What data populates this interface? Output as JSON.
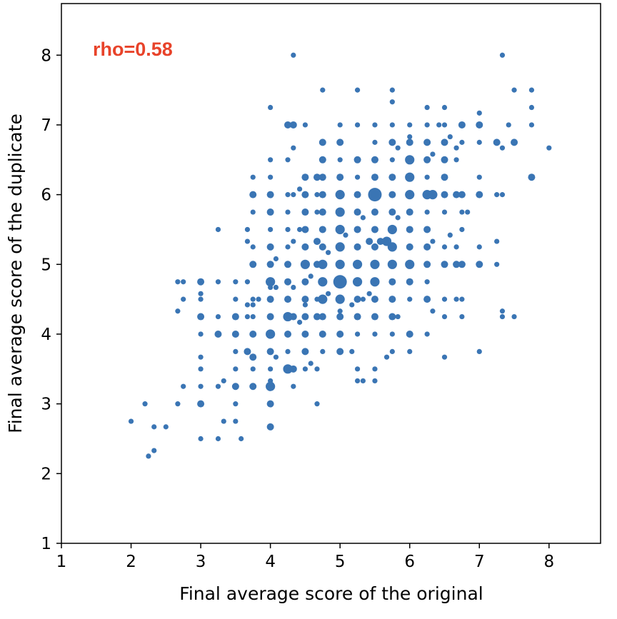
{
  "chart_data": {
    "type": "scatter",
    "title": "",
    "xlabel": "Final average score of the original",
    "ylabel": "Final average score of the duplicate",
    "xlim": [
      1,
      8.74
    ],
    "ylim": [
      1,
      8.74
    ],
    "xticks": [
      "1",
      "2",
      "3",
      "4",
      "5",
      "6",
      "7",
      "8"
    ],
    "yticks": [
      "1",
      "2",
      "3",
      "4",
      "5",
      "6",
      "7",
      "8"
    ],
    "grid": false,
    "annotation": {
      "text": "rho=0.58",
      "color": "#e8432a"
    },
    "marker_color": "#3a75b4",
    "point_format": "[x, y, relative count (marker size)]",
    "points": [
      [
        2,
        2.75,
        1
      ],
      [
        2.25,
        2.25,
        1
      ],
      [
        2.33,
        2.33,
        1
      ],
      [
        2.33,
        2.67,
        1
      ],
      [
        2.5,
        2.67,
        1
      ],
      [
        2.2,
        3,
        1
      ],
      [
        2.67,
        3,
        1
      ],
      [
        2.75,
        3.25,
        1
      ],
      [
        3,
        2.5,
        1
      ],
      [
        3,
        3,
        2
      ],
      [
        3,
        3.25,
        1
      ],
      [
        3,
        3.5,
        1
      ],
      [
        3,
        3.67,
        1
      ],
      [
        3,
        4,
        1
      ],
      [
        3,
        4.25,
        2
      ],
      [
        3,
        4.5,
        1
      ],
      [
        3,
        4.75,
        2
      ],
      [
        3,
        4.58,
        1
      ],
      [
        2.67,
        4.75,
        1
      ],
      [
        2.75,
        4.75,
        1
      ],
      [
        2.75,
        4.5,
        1
      ],
      [
        2.67,
        4.33,
        1
      ],
      [
        3.25,
        2.5,
        1
      ],
      [
        3.33,
        2.75,
        1
      ],
      [
        3.25,
        3.25,
        1
      ],
      [
        3.33,
        3.33,
        1
      ],
      [
        3.25,
        4,
        2
      ],
      [
        3.25,
        4.25,
        1
      ],
      [
        3.25,
        5.5,
        1
      ],
      [
        3.25,
        4.75,
        1
      ],
      [
        3.5,
        2.75,
        1
      ],
      [
        3.5,
        3.25,
        2
      ],
      [
        3.5,
        3.5,
        1
      ],
      [
        3.5,
        4,
        2
      ],
      [
        3.5,
        4.25,
        2
      ],
      [
        3.5,
        4.5,
        1
      ],
      [
        3.5,
        4.75,
        1
      ],
      [
        3.5,
        3,
        1
      ],
      [
        3.58,
        2.5,
        1
      ],
      [
        3.5,
        3.75,
        1
      ],
      [
        3.67,
        3.75,
        2
      ],
      [
        3.75,
        3.67,
        2
      ],
      [
        3.75,
        3.25,
        2
      ],
      [
        3.75,
        3.5,
        1
      ],
      [
        3.75,
        4,
        2
      ],
      [
        3.75,
        4.25,
        1
      ],
      [
        3.67,
        4.25,
        1
      ],
      [
        3.75,
        4.5,
        1
      ],
      [
        3.75,
        5,
        2
      ],
      [
        3.75,
        5.25,
        1
      ],
      [
        3.75,
        5.75,
        1
      ],
      [
        3.75,
        6,
        2
      ],
      [
        3.75,
        6.25,
        1
      ],
      [
        3.67,
        5.33,
        1
      ],
      [
        3.67,
        5.5,
        1
      ],
      [
        3.67,
        4.75,
        1
      ],
      [
        3.67,
        4.42,
        1
      ],
      [
        3.75,
        4.42,
        1
      ],
      [
        3.83,
        4.5,
        1
      ],
      [
        4,
        2.67,
        2
      ],
      [
        4,
        3,
        2
      ],
      [
        4,
        3.25,
        3
      ],
      [
        4,
        3.33,
        1
      ],
      [
        4,
        3.5,
        1
      ],
      [
        4,
        3.75,
        2
      ],
      [
        4,
        4,
        3
      ],
      [
        4,
        4.25,
        2
      ],
      [
        4,
        4.5,
        2
      ],
      [
        4,
        4.75,
        3
      ],
      [
        4,
        5,
        2
      ],
      [
        4,
        5.25,
        2
      ],
      [
        4,
        5.5,
        1
      ],
      [
        4,
        5.75,
        2
      ],
      [
        4,
        6,
        2
      ],
      [
        4,
        6.25,
        1
      ],
      [
        4,
        6.5,
        1
      ],
      [
        4,
        7.25,
        1
      ],
      [
        4,
        4.67,
        1
      ],
      [
        4.08,
        4.67,
        1
      ],
      [
        4.08,
        3.67,
        1
      ],
      [
        4.08,
        5.08,
        1
      ],
      [
        4.25,
        3.5,
        3
      ],
      [
        4.33,
        3.5,
        2
      ],
      [
        4.25,
        3.75,
        1
      ],
      [
        4.25,
        4,
        2
      ],
      [
        4.25,
        4.25,
        3
      ],
      [
        4.33,
        4.25,
        2
      ],
      [
        4.25,
        4.5,
        2
      ],
      [
        4.25,
        4.75,
        2
      ],
      [
        4.25,
        5,
        2
      ],
      [
        4.25,
        5.25,
        1
      ],
      [
        4.25,
        5.5,
        1
      ],
      [
        4.25,
        5.75,
        1
      ],
      [
        4.25,
        6,
        1
      ],
      [
        4.25,
        6.5,
        1
      ],
      [
        4.25,
        7,
        2
      ],
      [
        4.33,
        7,
        2
      ],
      [
        4.33,
        8,
        1
      ],
      [
        4.33,
        3.25,
        1
      ],
      [
        4.33,
        4.67,
        1
      ],
      [
        4.33,
        5.33,
        1
      ],
      [
        4.33,
        6,
        1
      ],
      [
        4.33,
        6.67,
        1
      ],
      [
        4.42,
        5.5,
        1
      ],
      [
        4.42,
        6.08,
        1
      ],
      [
        4.42,
        4.17,
        1
      ],
      [
        4.5,
        3.5,
        1
      ],
      [
        4.5,
        3.75,
        2
      ],
      [
        4.5,
        4,
        2
      ],
      [
        4.5,
        4.25,
        2
      ],
      [
        4.5,
        4.5,
        2
      ],
      [
        4.5,
        4.75,
        2
      ],
      [
        4.5,
        5,
        3
      ],
      [
        4.5,
        5.25,
        2
      ],
      [
        4.5,
        5.5,
        2
      ],
      [
        4.5,
        5.75,
        2
      ],
      [
        4.5,
        6,
        2
      ],
      [
        4.5,
        6.25,
        2
      ],
      [
        4.5,
        7,
        1
      ],
      [
        4.5,
        4.42,
        1
      ],
      [
        4.58,
        4.83,
        1
      ],
      [
        4.58,
        3.58,
        1
      ],
      [
        4.67,
        3.5,
        1
      ],
      [
        4.67,
        4.25,
        2
      ],
      [
        4.67,
        4.5,
        1
      ],
      [
        4.67,
        5,
        2
      ],
      [
        4.67,
        5.33,
        2
      ],
      [
        4.67,
        5.75,
        1
      ],
      [
        4.67,
        6,
        1
      ],
      [
        4.67,
        6.25,
        2
      ],
      [
        4.67,
        3,
        1
      ],
      [
        4.75,
        3.75,
        1
      ],
      [
        4.75,
        4,
        2
      ],
      [
        4.75,
        4.25,
        2
      ],
      [
        4.75,
        4.5,
        3
      ],
      [
        4.75,
        4.75,
        3
      ],
      [
        4.75,
        5,
        3
      ],
      [
        4.75,
        5.25,
        2
      ],
      [
        4.75,
        5.5,
        2
      ],
      [
        4.75,
        5.75,
        2
      ],
      [
        4.75,
        6,
        2
      ],
      [
        4.75,
        6.25,
        2
      ],
      [
        4.75,
        6.5,
        2
      ],
      [
        4.75,
        6.75,
        2
      ],
      [
        4.75,
        7.5,
        1
      ],
      [
        4.83,
        5.17,
        1
      ],
      [
        4.83,
        4.58,
        1
      ],
      [
        5,
        3.75,
        2
      ],
      [
        5,
        4,
        2
      ],
      [
        5,
        4.25,
        2
      ],
      [
        5,
        4.5,
        3
      ],
      [
        5,
        4.75,
        4
      ],
      [
        5,
        5,
        3
      ],
      [
        5,
        5.25,
        3
      ],
      [
        5,
        5.5,
        3
      ],
      [
        5,
        5.75,
        3
      ],
      [
        5,
        6,
        3
      ],
      [
        5,
        6.25,
        2
      ],
      [
        5,
        6.5,
        1
      ],
      [
        5,
        6.75,
        2
      ],
      [
        5,
        7,
        1
      ],
      [
        5,
        4.33,
        1
      ],
      [
        5.08,
        5.42,
        1
      ],
      [
        5.17,
        4.42,
        1
      ],
      [
        5.17,
        3.75,
        1
      ],
      [
        5.25,
        3.33,
        1
      ],
      [
        5.25,
        3.5,
        1
      ],
      [
        5.25,
        4,
        1
      ],
      [
        5.25,
        4.25,
        2
      ],
      [
        5.25,
        4.5,
        2
      ],
      [
        5.25,
        4.75,
        3
      ],
      [
        5.25,
        5,
        3
      ],
      [
        5.25,
        5.25,
        2
      ],
      [
        5.25,
        5.5,
        2
      ],
      [
        5.25,
        5.75,
        2
      ],
      [
        5.25,
        6,
        2
      ],
      [
        5.25,
        6.25,
        1
      ],
      [
        5.25,
        6.5,
        2
      ],
      [
        5.25,
        7,
        1
      ],
      [
        5.25,
        7.5,
        1
      ],
      [
        5.33,
        3.33,
        1
      ],
      [
        5.33,
        4.5,
        1
      ],
      [
        5.33,
        5.67,
        1
      ],
      [
        5.42,
        4.58,
        1
      ],
      [
        5.5,
        3.33,
        1
      ],
      [
        5.5,
        3.5,
        1
      ],
      [
        5.5,
        4.25,
        2
      ],
      [
        5.5,
        4.5,
        2
      ],
      [
        5.5,
        4.75,
        3
      ],
      [
        5.5,
        5,
        3
      ],
      [
        5.5,
        5.25,
        2
      ],
      [
        5.5,
        5.5,
        2
      ],
      [
        5.5,
        5.75,
        2
      ],
      [
        5.5,
        6,
        4
      ],
      [
        5.5,
        6.25,
        2
      ],
      [
        5.5,
        6.5,
        2
      ],
      [
        5.5,
        6.75,
        1
      ],
      [
        5.5,
        7,
        1
      ],
      [
        5.5,
        4,
        1
      ],
      [
        5.42,
        5.33,
        2
      ],
      [
        5.58,
        5.33,
        2
      ],
      [
        5.67,
        5.33,
        3
      ],
      [
        5.67,
        3.67,
        1
      ],
      [
        5.75,
        3.75,
        1
      ],
      [
        5.75,
        4,
        1
      ],
      [
        5.75,
        4.25,
        2
      ],
      [
        5.75,
        4.5,
        2
      ],
      [
        5.75,
        4.75,
        2
      ],
      [
        5.75,
        5,
        3
      ],
      [
        5.75,
        5.25,
        3
      ],
      [
        5.75,
        5.5,
        3
      ],
      [
        5.75,
        5.75,
        2
      ],
      [
        5.75,
        6,
        2
      ],
      [
        5.75,
        6.25,
        2
      ],
      [
        5.75,
        6.5,
        1
      ],
      [
        5.75,
        6.75,
        2
      ],
      [
        5.75,
        7,
        1
      ],
      [
        5.75,
        7.5,
        1
      ],
      [
        5.75,
        7.33,
        1
      ],
      [
        5.83,
        4.25,
        1
      ],
      [
        5.83,
        5.67,
        1
      ],
      [
        5.83,
        6.67,
        1
      ],
      [
        6,
        3.75,
        1
      ],
      [
        6,
        4,
        2
      ],
      [
        6,
        4.5,
        1
      ],
      [
        6,
        4.75,
        2
      ],
      [
        6,
        5,
        3
      ],
      [
        6,
        5.25,
        2
      ],
      [
        6,
        5.5,
        2
      ],
      [
        6,
        5.75,
        2
      ],
      [
        6,
        6,
        3
      ],
      [
        6,
        6.25,
        3
      ],
      [
        6,
        6.5,
        3
      ],
      [
        6,
        6.75,
        2
      ],
      [
        6,
        6.83,
        1
      ],
      [
        6,
        7,
        1
      ],
      [
        6.25,
        4,
        1
      ],
      [
        6.25,
        4.5,
        2
      ],
      [
        6.25,
        4.75,
        1
      ],
      [
        6.25,
        5,
        2
      ],
      [
        6.25,
        5.25,
        2
      ],
      [
        6.25,
        5.5,
        2
      ],
      [
        6.25,
        5.75,
        1
      ],
      [
        6.25,
        6,
        3
      ],
      [
        6.25,
        6.25,
        1
      ],
      [
        6.25,
        6.5,
        2
      ],
      [
        6.25,
        6.75,
        2
      ],
      [
        6.25,
        7,
        1
      ],
      [
        6.25,
        7.25,
        1
      ],
      [
        6.33,
        6,
        3
      ],
      [
        6.33,
        5.33,
        1
      ],
      [
        6.33,
        4.33,
        1
      ],
      [
        6.33,
        6.58,
        1
      ],
      [
        6.42,
        7,
        1
      ],
      [
        6.5,
        3.67,
        1
      ],
      [
        6.5,
        4.25,
        1
      ],
      [
        6.5,
        4.5,
        1
      ],
      [
        6.5,
        5,
        2
      ],
      [
        6.5,
        5.25,
        1
      ],
      [
        6.5,
        5.75,
        1
      ],
      [
        6.5,
        6,
        2
      ],
      [
        6.5,
        6.25,
        2
      ],
      [
        6.5,
        6.5,
        2
      ],
      [
        6.5,
        6.75,
        2
      ],
      [
        6.5,
        7,
        1
      ],
      [
        6.5,
        7.25,
        1
      ],
      [
        6.58,
        5.42,
        1
      ],
      [
        6.58,
        6.83,
        1
      ],
      [
        6.67,
        4.5,
        1
      ],
      [
        6.67,
        5,
        2
      ],
      [
        6.67,
        5.25,
        1
      ],
      [
        6.67,
        6,
        2
      ],
      [
        6.67,
        6.5,
        1
      ],
      [
        6.67,
        6.67,
        1
      ],
      [
        6.75,
        4.25,
        1
      ],
      [
        6.75,
        4.5,
        1
      ],
      [
        6.75,
        5,
        2
      ],
      [
        6.75,
        5.5,
        1
      ],
      [
        6.75,
        5.75,
        1
      ],
      [
        6.75,
        6,
        2
      ],
      [
        6.75,
        6.75,
        1
      ],
      [
        6.75,
        7,
        2
      ],
      [
        6.83,
        5.75,
        1
      ],
      [
        7,
        3.75,
        1
      ],
      [
        7,
        5,
        2
      ],
      [
        7,
        5.25,
        1
      ],
      [
        7,
        6,
        2
      ],
      [
        7,
        6.25,
        1
      ],
      [
        7,
        6.75,
        1
      ],
      [
        7,
        7,
        2
      ],
      [
        7,
        7.17,
        1
      ],
      [
        7.25,
        5,
        1
      ],
      [
        7.25,
        5.33,
        1
      ],
      [
        7.25,
        6.75,
        2
      ],
      [
        7.25,
        6,
        1
      ],
      [
        7.33,
        6,
        1
      ],
      [
        7.33,
        4.25,
        1
      ],
      [
        7.33,
        4.33,
        1
      ],
      [
        7.33,
        6.67,
        1
      ],
      [
        7.33,
        8,
        1
      ],
      [
        7.42,
        7,
        1
      ],
      [
        7.5,
        4.25,
        1
      ],
      [
        7.5,
        6.75,
        2
      ],
      [
        7.5,
        7.5,
        1
      ],
      [
        7.75,
        6.25,
        2
      ],
      [
        7.75,
        7,
        1
      ],
      [
        7.75,
        7.25,
        1
      ],
      [
        7.75,
        7.5,
        1
      ],
      [
        8,
        6.67,
        1
      ]
    ]
  }
}
